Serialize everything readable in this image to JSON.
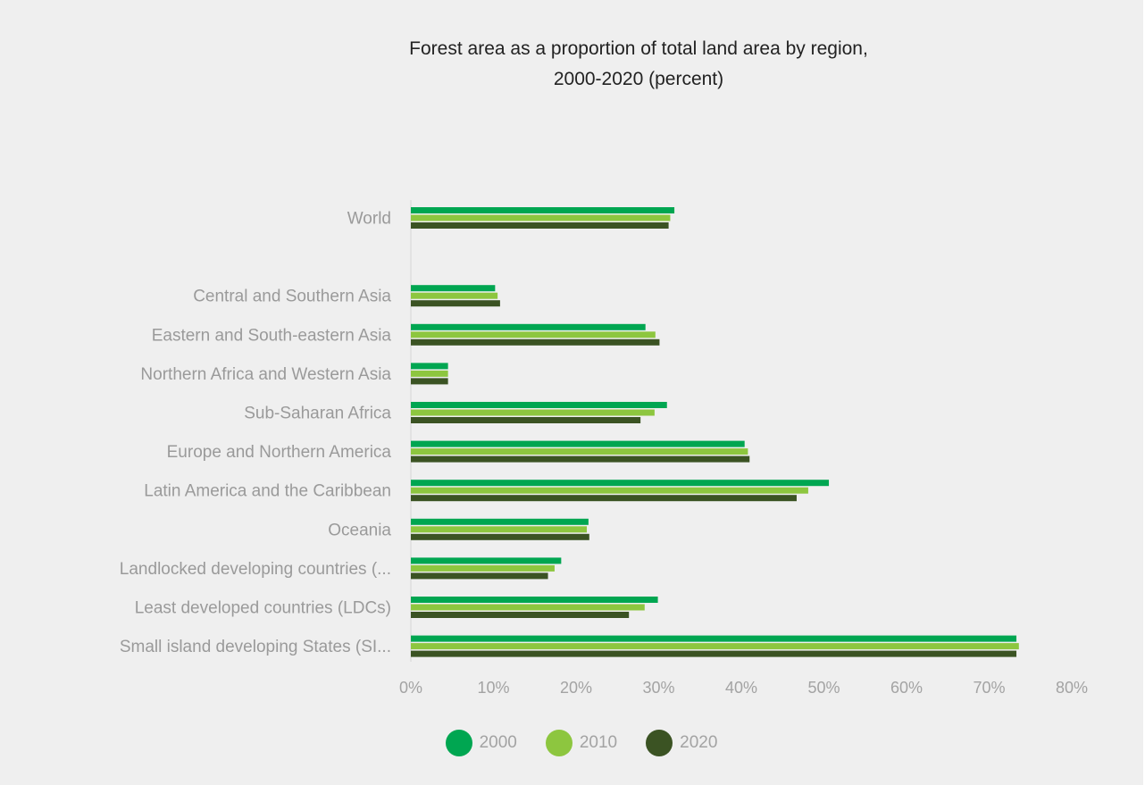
{
  "chart_data": {
    "type": "bar",
    "orientation": "horizontal",
    "title": "Forest area as a proportion of total land area by region, 2000-2020 (percent)",
    "categories": [
      "World",
      "",
      "Central and Southern Asia",
      "Eastern and South-eastern Asia",
      "Northern Africa and Western Asia",
      "Sub-Saharan Africa",
      "Europe and Northern America",
      "Latin America and the Caribbean",
      "Oceania",
      "Landlocked developing countries (...",
      "Least developed countries (LDCs)",
      "Small island developing States (SI..."
    ],
    "series": [
      {
        "name": "2000",
        "color": "#00a651",
        "values": [
          31.9,
          null,
          10.2,
          28.4,
          4.5,
          31.0,
          40.4,
          50.6,
          21.5,
          18.2,
          29.9,
          73.3
        ]
      },
      {
        "name": "2010",
        "color": "#8dc63f",
        "values": [
          31.4,
          null,
          10.5,
          29.6,
          4.5,
          29.5,
          40.8,
          48.1,
          21.3,
          17.4,
          28.3,
          73.6
        ]
      },
      {
        "name": "2020",
        "color": "#3b5323",
        "values": [
          31.2,
          null,
          10.8,
          30.1,
          4.5,
          27.8,
          41.0,
          46.7,
          21.6,
          16.6,
          26.4,
          73.3
        ]
      }
    ],
    "xlim": [
      0,
      80
    ],
    "ticks": [
      0,
      10,
      20,
      30,
      40,
      50,
      60,
      70,
      80
    ],
    "tick_labels": [
      "0%",
      "10%",
      "20%",
      "30%",
      "40%",
      "50%",
      "60%",
      "70%",
      "80%"
    ],
    "xlabel": "",
    "ylabel": "",
    "grid": false,
    "legend_position": "bottom"
  },
  "title_lines": [
    "Forest area as a proportion of total land area by region,",
    "2000-2020 (percent)"
  ],
  "legend": [
    {
      "label": "2000",
      "color": "#00a651"
    },
    {
      "label": "2010",
      "color": "#8dc63f"
    },
    {
      "label": "2020",
      "color": "#3b5323"
    }
  ]
}
